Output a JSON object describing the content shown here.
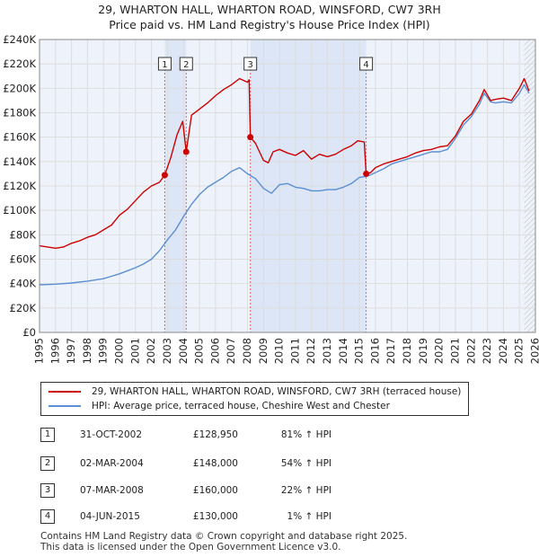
{
  "chart_data": {
    "type": "line",
    "title": "29, WHARTON HALL, WHARTON ROAD, WINSFORD, CW7 3RH",
    "subtitle": "Price paid vs. HM Land Registry's House Price Index (HPI)",
    "xlabel": "",
    "ylabel": "",
    "xlim": [
      1995,
      2026
    ],
    "ylim": [
      0,
      240000
    ],
    "y_ticks": [
      0,
      20000,
      40000,
      60000,
      80000,
      100000,
      120000,
      140000,
      160000,
      180000,
      200000,
      220000,
      240000
    ],
    "y_tick_labels": [
      "£0",
      "£20K",
      "£40K",
      "£60K",
      "£80K",
      "£100K",
      "£120K",
      "£140K",
      "£160K",
      "£180K",
      "£200K",
      "£220K",
      "£240K"
    ],
    "x_ticks": [
      1995,
      1996,
      1997,
      1998,
      1999,
      2000,
      2001,
      2002,
      2003,
      2004,
      2005,
      2006,
      2007,
      2008,
      2009,
      2010,
      2011,
      2012,
      2013,
      2014,
      2015,
      2016,
      2017,
      2018,
      2019,
      2020,
      2021,
      2022,
      2023,
      2024,
      2025,
      2026
    ],
    "x_tick_labels": [
      "1995",
      "1996",
      "1997",
      "1998",
      "1999",
      "2000",
      "2001",
      "2002",
      "2003",
      "2004",
      "2005",
      "2006",
      "2007",
      "2008",
      "2009",
      "2010",
      "2011",
      "2012",
      "2013",
      "2014",
      "2015",
      "2016",
      "2017",
      "2018",
      "2019",
      "2020",
      "2021",
      "2022",
      "2023",
      "2024",
      "2025",
      "2026"
    ],
    "grid": true,
    "series": [
      {
        "name": "29, WHARTON HALL, WHARTON ROAD, WINSFORD, CW7 3RH (terraced house)",
        "color": "#cc0000",
        "x": [
          1995.0,
          1995.5,
          1996.0,
          1996.5,
          1997.0,
          1997.5,
          1998.0,
          1998.5,
          1999.0,
          1999.5,
          2000.0,
          2000.5,
          2001.0,
          2001.5,
          2002.0,
          2002.5,
          2002.83,
          2003.2,
          2003.6,
          2003.95,
          2004.17,
          2004.5,
          2005.0,
          2005.5,
          2006.0,
          2006.5,
          2007.0,
          2007.5,
          2008.0,
          2008.1,
          2008.18,
          2008.5,
          2009.0,
          2009.3,
          2009.6,
          2010.0,
          2010.5,
          2011.0,
          2011.5,
          2012.0,
          2012.5,
          2013.0,
          2013.5,
          2014.0,
          2014.5,
          2014.9,
          2015.3,
          2015.42,
          2015.7,
          2016.0,
          2016.5,
          2017.0,
          2017.5,
          2018.0,
          2018.5,
          2019.0,
          2019.5,
          2020.0,
          2020.5,
          2021.0,
          2021.5,
          2022.0,
          2022.5,
          2022.8,
          2023.2,
          2023.5,
          2024.0,
          2024.5,
          2025.0,
          2025.3,
          2025.6
        ],
        "values": [
          71000,
          70000,
          69000,
          70000,
          73000,
          75000,
          78000,
          80000,
          84000,
          88000,
          96000,
          101000,
          108000,
          115000,
          120000,
          123000,
          128950,
          143000,
          162000,
          173000,
          148000,
          178000,
          183000,
          188000,
          194000,
          199000,
          203000,
          208000,
          205000,
          207000,
          160000,
          155000,
          141000,
          139000,
          148000,
          150000,
          147000,
          145000,
          149000,
          142000,
          146000,
          144000,
          146000,
          150000,
          153000,
          157000,
          156000,
          130000,
          131000,
          135000,
          138000,
          140000,
          142000,
          144000,
          147000,
          149000,
          150000,
          152000,
          153000,
          161000,
          173000,
          179000,
          190000,
          199000,
          190000,
          191000,
          192000,
          190000,
          200000,
          208000,
          198000
        ]
      },
      {
        "name": "HPI: Average price, terraced house, Cheshire West and Chester",
        "color": "#5b8fd1",
        "x": [
          1995.0,
          1996.0,
          1997.0,
          1998.0,
          1999.0,
          2000.0,
          2001.0,
          2001.5,
          2002.0,
          2002.5,
          2003.0,
          2003.5,
          2004.0,
          2004.5,
          2005.0,
          2005.5,
          2006.0,
          2006.5,
          2007.0,
          2007.5,
          2008.0,
          2008.5,
          2009.0,
          2009.5,
          2010.0,
          2010.5,
          2011.0,
          2011.5,
          2012.0,
          2012.5,
          2013.0,
          2013.5,
          2014.0,
          2014.5,
          2015.0,
          2015.5,
          2016.0,
          2016.5,
          2017.0,
          2017.5,
          2018.0,
          2018.5,
          2019.0,
          2019.5,
          2020.0,
          2020.5,
          2021.0,
          2021.5,
          2022.0,
          2022.5,
          2022.8,
          2023.2,
          2023.5,
          2024.0,
          2024.5,
          2025.0,
          2025.3,
          2025.6
        ],
        "values": [
          39000,
          39500,
          40500,
          42000,
          44000,
          48000,
          53000,
          56000,
          60000,
          67000,
          76000,
          84000,
          95000,
          105000,
          113000,
          119000,
          123000,
          127000,
          132000,
          135000,
          130000,
          126000,
          118000,
          114000,
          121000,
          122000,
          119000,
          118000,
          116000,
          116000,
          117000,
          117000,
          119000,
          122000,
          127000,
          128000,
          131000,
          134000,
          138000,
          140000,
          142000,
          144000,
          146000,
          148000,
          148000,
          150000,
          159000,
          170000,
          177000,
          187000,
          196000,
          189000,
          188000,
          189000,
          188000,
          196000,
          203000,
          196000
        ]
      }
    ],
    "transactions": [
      {
        "label": "1",
        "x": 2002.83,
        "value": 128950
      },
      {
        "label": "2",
        "x": 2004.17,
        "value": 148000
      },
      {
        "label": "3",
        "x": 2008.18,
        "value": 160000
      },
      {
        "label": "4",
        "x": 2015.42,
        "value": 130000
      }
    ]
  },
  "legend": {
    "property": "29, WHARTON HALL, WHARTON ROAD, WINSFORD, CW7 3RH (terraced house)",
    "hpi": "HPI: Average price, terraced house, Cheshire West and Chester"
  },
  "table": [
    {
      "num": "1",
      "date": "31-OCT-2002",
      "price": "£128,950",
      "hpi": "81% ↑ HPI"
    },
    {
      "num": "2",
      "date": "02-MAR-2004",
      "price": "£148,000",
      "hpi": "54% ↑ HPI"
    },
    {
      "num": "3",
      "date": "07-MAR-2008",
      "price": "£160,000",
      "hpi": "22% ↑ HPI"
    },
    {
      "num": "4",
      "date": "04-JUN-2015",
      "price": "£130,000",
      "hpi": "1% ↑ HPI"
    }
  ],
  "footer": {
    "line1": "Contains HM Land Registry data © Crown copyright and database right 2025.",
    "line2": "This data is licensed under the Open Government Licence v3.0."
  },
  "colors": {
    "property_line": "#cc0000",
    "hpi_line": "#5b8fd1",
    "shade": "#dde6f7",
    "grid": "#dddddd",
    "plot_bg": "#eef2fb",
    "marker_line": "#e06666"
  }
}
